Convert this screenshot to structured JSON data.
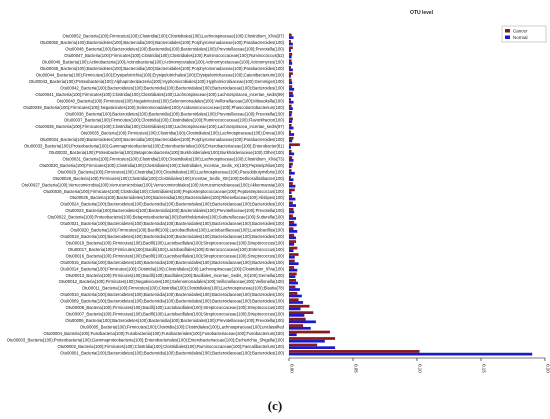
{
  "figure_label": "(c)",
  "chart_data": {
    "type": "bar",
    "orientation": "horizontal",
    "title": "OTU level",
    "legend_position": "top-right",
    "series": [
      {
        "name": "Cancer",
        "color": "#8b1a1a"
      },
      {
        "name": "Normal",
        "color": "#1a1acd"
      }
    ],
    "xlim": [
      0,
      0.2
    ],
    "xticks": [
      "0.00",
      "0.05",
      "0.10",
      "0.15",
      "0.20"
    ],
    "categories": [
      {
        "label": "Otu00052_Bacteria(100);Firmicutes(100);Clostridia(100);Clostridiales(100);Lachnospiraceae(100);Clostridium_XlVa(97)",
        "cancer": 0.002,
        "normal": 0.0035
      },
      {
        "label": "Otu00050_Bacteria(100);Bacteroidetes(100);Bacteroidia(100);Bacteroidales(100);Porphyromonadaceae(100);Parabacteroides(100)",
        "cancer": 0.0015,
        "normal": 0.003
      },
      {
        "label": "Otu00048_Bacteria(100);Bacteroidetes(100);Bacteroidia(100);Bacteroidales(100);Prevotellaceae(100);Prevotella(100)",
        "cancer": 0.003,
        "normal": 0.0015
      },
      {
        "label": "Otu00047_Bacteria(100);Firmicutes(100);Clostridia(100);Clostridiales(100);Ruminococcaceae(100);Ruminococcus(52)",
        "cancer": 0.0025,
        "normal": 0.002
      },
      {
        "label": "Otu00046_Bacteria(100);Actinobacteria(100);Actinobacteria(100);Actinomycetales(100);Actinomycetaceae(100);Actinomyces(100)",
        "cancer": 0.002,
        "normal": 0.0025
      },
      {
        "label": "Otu00045_Bacteria(100);Bacteroidetes(100);Bacteroidia(100);Bacteroidales(100);Porphyromonadaceae(100);Parabacteroides(100)",
        "cancer": 0.0015,
        "normal": 0.003
      },
      {
        "label": "Otu00044_Bacteria(100);Firmicutes(100);Erysipelotrichia(100);Erysipelotrichales(100);Erysipelotrichaceae(100);Catenibacterium(100)",
        "cancer": 0.003,
        "normal": 0.0015
      },
      {
        "label": "Otu00043_Bacteria(100);Proteobacteria(100);Alphaproteobacteria(100);Hyphomicrobiales(100);Hyphomicrobiaceae(100);Gemmiger(100)",
        "cancer": 0.002,
        "normal": 0.0025
      },
      {
        "label": "Otu00042_Bacteria(100);Bacteroidetes(100);Bacteroidia(100);Bacteroidales(100);Bacteroidaceae(100);Bacteroides(100)",
        "cancer": 0.0025,
        "normal": 0.004
      },
      {
        "label": "Otu00041_Bacteria(100);Firmicutes(100);Clostridia(100);Clostridiales(100);Lachnospiraceae(100);Lachnospiracea_incertae_sedis(99)",
        "cancer": 0.003,
        "normal": 0.0035
      },
      {
        "label": "Otu00040_Bacteria(100);Firmicutes(100);Negativicutes(100);Selenomonadales(100);Veillonellaceae(100);Mitsuokella(100)",
        "cancer": 0.0015,
        "normal": 0.0035
      },
      {
        "label": "Otu00039_Bacteria(100);Firmicutes(100);Negativicutes(100);Selenomonadales(100);Acidaminococcaceae(100);Phascolarctobacterium(100)",
        "cancer": 0.002,
        "normal": 0.003
      },
      {
        "label": "Otu00038_Bacteria(100);Bacteroidetes(100);Bacteroidia(100);Bacteroidales(100);Prevotellaceae(100);Prevotella(100)",
        "cancer": 0.0025,
        "normal": 0.002
      },
      {
        "label": "Otu00037_Bacteria(100);Firmicutes(100);Clostridia(100);Clostridiales(100);Ruminococcaceae(100);Flavonifractor(100)",
        "cancer": 0.003,
        "normal": 0.0025
      },
      {
        "label": "Otu00036_Bacteria(100);Firmicutes(100);Clostridia(100);Clostridiales(100);Lachnospiraceae(100);Lachnospiracea_incertae_sedis(97)",
        "cancer": 0.002,
        "normal": 0.0035
      },
      {
        "label": "Otu00035_Bacteria(100);Firmicutes(100);Clostridia(100);Clostridiales(100);Lachnospiraceae(100);Dorea(100)",
        "cancer": 0.0015,
        "normal": 0.004
      },
      {
        "label": "Otu00034_Bacteria(100);Bacteroidetes(100);Bacteroidia(100);Bacteroidales(100);Porphyromonadaceae(100);Parabacteroides(100)",
        "cancer": 0.0035,
        "normal": 0.0025
      },
      {
        "label": "Otu00033_Bacteria(100);Proteobacteria(100);Gammaproteobacteria(100);Enterobacteriales(100);Enterobacteriaceae(100);Enterobacter(81)",
        "cancer": 0.0085,
        "normal": 0.0015
      },
      {
        "label": "Otu00032_Bacteria(100);Proteobacteria(100);Betaproteobacteria(100);Burkholderiales(100);Burkholderiaceae(100);Other(100)",
        "cancer": 0.002,
        "normal": 0.004
      },
      {
        "label": "Otu00031_Bacteria(100);Firmicutes(100);Clostridia(100);Clostridiales(100);Lachnospiraceae(100);Clostridium_XlVa(73)",
        "cancer": 0.0025,
        "normal": 0.0035
      },
      {
        "label": "Otu00030_Bacteria(100);Firmicutes(100);Clostridia(100);Clostridiales(100);Clostridiales_Incertae_Sedis_XI(100);Peptoniphilus(100)",
        "cancer": 0.003,
        "normal": 0.002
      },
      {
        "label": "Otu00029_Bacteria(100);Firmicutes(100);Clostridia(100);Clostridiales(100);Lachnospiraceae(100);Pseudobutyrivibrio(100)",
        "cancer": 0.002,
        "normal": 0.0045
      },
      {
        "label": "Otu00028_Bacteria(100);Firmicutes(100);Clostridia(100);Clostridiales(100);Incertae_Sedis_XIII(100);Dethiosulfatibacter(100)",
        "cancer": 0.0015,
        "normal": 0.0035
      },
      {
        "label": "Otu00027_Bacteria(100);Verrucomicrobia(100);Verrucomicrobiae(100);Verrucomicrobiales(100);Verrucomicrobiaceae(100);Akkermansia(100)",
        "cancer": 0.003,
        "normal": 0.005
      },
      {
        "label": "Otu00026_Bacteria(100);Firmicutes(100);Clostridia(100);Clostridiales(100);Peptostreptococcaceae(100);Peptostreptococcus(100)",
        "cancer": 0.0045,
        "normal": 0.002
      },
      {
        "label": "Otu00025_Bacteria(100);Bacteroidetes(100);Bacteroidia(100);Bacteroidales(100);Rikenellaceae(100);Alistipes(100)",
        "cancer": 0.0025,
        "normal": 0.005
      },
      {
        "label": "Otu00024_Bacteria(100);Bacteroidetes(100);Bacteroidia(100);Bacteroidales(100);Bacteroidaceae(100);Bacteroides(100)",
        "cancer": 0.003,
        "normal": 0.0055
      },
      {
        "label": "Otu00023_Bacteria(100);Bacteroidetes(100);Bacteroidia(100);Bacteroidales(100);Prevotellaceae(100);Prevotella(100)",
        "cancer": 0.0035,
        "normal": 0.004
      },
      {
        "label": "Otu00022_Bacteria(100);Proteobacteria(100);Betaproteobacteria(100);Burkholderiales(100);Sutterellaceae(100);Sutterella(100)",
        "cancer": 0.003,
        "normal": 0.0055
      },
      {
        "label": "Otu00021_Bacteria(100);Bacteroidetes(100);Bacteroidia(100);Bacteroidales(100);Bacteroidaceae(100);Bacteroides(100)",
        "cancer": 0.004,
        "normal": 0.006
      },
      {
        "label": "Otu00020_Bacteria(100);Firmicutes(100);Bacilli(100);Lactobacillales(100);Lactobacillaceae(100);Lactobacillus(100)",
        "cancer": 0.0035,
        "normal": 0.0065
      },
      {
        "label": "Otu00019_Bacteria(100);Bacteroidetes(100);Bacteroidia(100);Bacteroidales(100);Bacteroidaceae(100);Bacteroides(100)",
        "cancer": 0.004,
        "normal": 0.0055
      },
      {
        "label": "Otu00018_Bacteria(100);Firmicutes(100);Bacilli(100);Lactobacillales(100);Streptococcaceae(100);Streptococcus(100)",
        "cancer": 0.0055,
        "normal": 0.004
      },
      {
        "label": "Otu00017_Bacteria(100);Firmicutes(100);Bacilli(100);Lactobacillales(100);Enterococcaceae(100);Enterococcus(100)",
        "cancer": 0.0065,
        "normal": 0.0035
      },
      {
        "label": "Otu00016_Bacteria(100);Firmicutes(100);Bacilli(100);Lactobacillales(100);Streptococcaceae(100);Streptococcus(100)",
        "cancer": 0.0075,
        "normal": 0.0045
      },
      {
        "label": "Otu00015_Bacteria(100);Bacteroidetes(100);Bacteroidia(100);Bacteroidales(100);Bacteroidaceae(100);Bacteroides(100)",
        "cancer": 0.0045,
        "normal": 0.0075
      },
      {
        "label": "Otu00014_Bacteria(100);Firmicutes(100);Clostridia(100);Clostridiales(100);Lachnospiraceae(100);Clostridium_XlVa(100)",
        "cancer": 0.004,
        "normal": 0.0065
      },
      {
        "label": "Otu00013_Bacteria(100);Firmicutes(100);Bacilli(100);Bacillales(100);Bacillales_Incertae_Sedis_XI(100);Gemella(100)",
        "cancer": 0.006,
        "normal": 0.005
      },
      {
        "label": "Otu00012_Bacteria(100);Firmicutes(100);Negativicutes(100);Selenomonadales(100);Veillonellaceae(100);Veillonella(100)",
        "cancer": 0.0055,
        "normal": 0.007
      },
      {
        "label": "Otu00011_Bacteria(100);Firmicutes(100);Clostridia(100);Clostridiales(100);Lachnospiraceae(100);Blautia(78)",
        "cancer": 0.005,
        "normal": 0.0085
      },
      {
        "label": "Otu00010_Bacteria(100);Bacteroidetes(100);Bacteroidia(100);Bacteroidales(100);Bacteroidaceae(100);Bacteroides(100)",
        "cancer": 0.0065,
        "normal": 0.01
      },
      {
        "label": "Otu00009_Bacteria(100);Bacteroidetes(100);Bacteroidia(100);Bacteroidales(100);Bacteroidaceae(100);Bacteroides(100)",
        "cancer": 0.0075,
        "normal": 0.011
      },
      {
        "label": "Otu00008_Bacteria(100);Firmicutes(100);Bacilli(100);Lactobacillales(100);Streptococcaceae(100);Streptococcus(100)",
        "cancer": 0.016,
        "normal": 0.009
      },
      {
        "label": "Otu00007_Bacteria(100);Firmicutes(100);Bacilli(100);Lactobacillales(100);Streptococcaceae(100);Streptococcus(100)",
        "cancer": 0.019,
        "normal": 0.012
      },
      {
        "label": "Otu00006_Bacteria(100);Bacteroidetes(100);Bacteroidia(100);Bacteroidales(100);Prevotellaceae(100);Prevotella(100)",
        "cancer": 0.013,
        "normal": 0.021
      },
      {
        "label": "Otu00005_Bacteria(100);Firmicutes(100);Clostridia(100);Clostridiales(100);Lachnospiraceae(100);unclassified",
        "cancer": 0.011,
        "normal": 0.017
      },
      {
        "label": "Otu00004_Bacteria(100);Fusobacteria(100);Fusobacteriia(100);Fusobacteriales(100);Fusobacteriaceae(100);Fusobacterium(100)",
        "cancer": 0.032,
        "normal": 0.006
      },
      {
        "label": "Otu00003_Bacteria(100);Proteobacteria(100);Gammaproteobacteria(100);Enterobacteriales(100);Enterobacteriaceae(100);Escherichia_Shigella(100)",
        "cancer": 0.036,
        "normal": 0.028
      },
      {
        "label": "Otu00002_Bacteria(100);Firmicutes(100);Clostridia(100);Clostridiales(100);Ruminococcaceae(100);Faecalibacterium(100)",
        "cancer": 0.022,
        "normal": 0.036
      },
      {
        "label": "Otu00001_Bacteria(100);Bacteroidetes(100);Bacteroidia(100);Bacteroidales(100);Bacteroidaceae(100);Bacteroides(100)",
        "cancer": 0.102,
        "normal": 0.19
      }
    ]
  }
}
